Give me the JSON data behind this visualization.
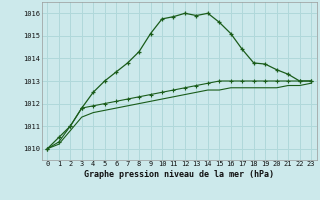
{
  "title": "Graphe pression niveau de la mer (hPa)",
  "bg_color": "#cce9eb",
  "grid_color": "#b0d8da",
  "line_color": "#1a5c1a",
  "x_labels": [
    "0",
    "1",
    "2",
    "3",
    "4",
    "5",
    "6",
    "7",
    "8",
    "9",
    "10",
    "11",
    "12",
    "13",
    "14",
    "15",
    "16",
    "17",
    "18",
    "19",
    "20",
    "21",
    "22",
    "23"
  ],
  "ylim": [
    1009.5,
    1016.5
  ],
  "yticks": [
    1010,
    1011,
    1012,
    1013,
    1014,
    1015,
    1016
  ],
  "series1": [
    1010.0,
    1010.5,
    1011.0,
    1011.8,
    1012.5,
    1013.0,
    1013.4,
    1013.8,
    1014.3,
    1015.1,
    1015.75,
    1015.85,
    1016.0,
    1015.9,
    1016.0,
    1015.6,
    1015.1,
    1014.4,
    1013.8,
    1013.75,
    1013.5,
    1013.3,
    1013.0,
    1013.0
  ],
  "series2": [
    1010.0,
    1010.3,
    1011.0,
    1011.8,
    1011.9,
    1012.0,
    1012.1,
    1012.2,
    1012.3,
    1012.4,
    1012.5,
    1012.6,
    1012.7,
    1012.8,
    1012.9,
    1013.0,
    1013.0,
    1013.0,
    1013.0,
    1013.0,
    1013.0,
    1013.0,
    1013.0,
    1013.0
  ],
  "series3": [
    1010.0,
    1010.2,
    1010.8,
    1011.4,
    1011.6,
    1011.7,
    1011.8,
    1011.9,
    1012.0,
    1012.1,
    1012.2,
    1012.3,
    1012.4,
    1012.5,
    1012.6,
    1012.6,
    1012.7,
    1012.7,
    1012.7,
    1012.7,
    1012.7,
    1012.8,
    1012.8,
    1012.9
  ]
}
